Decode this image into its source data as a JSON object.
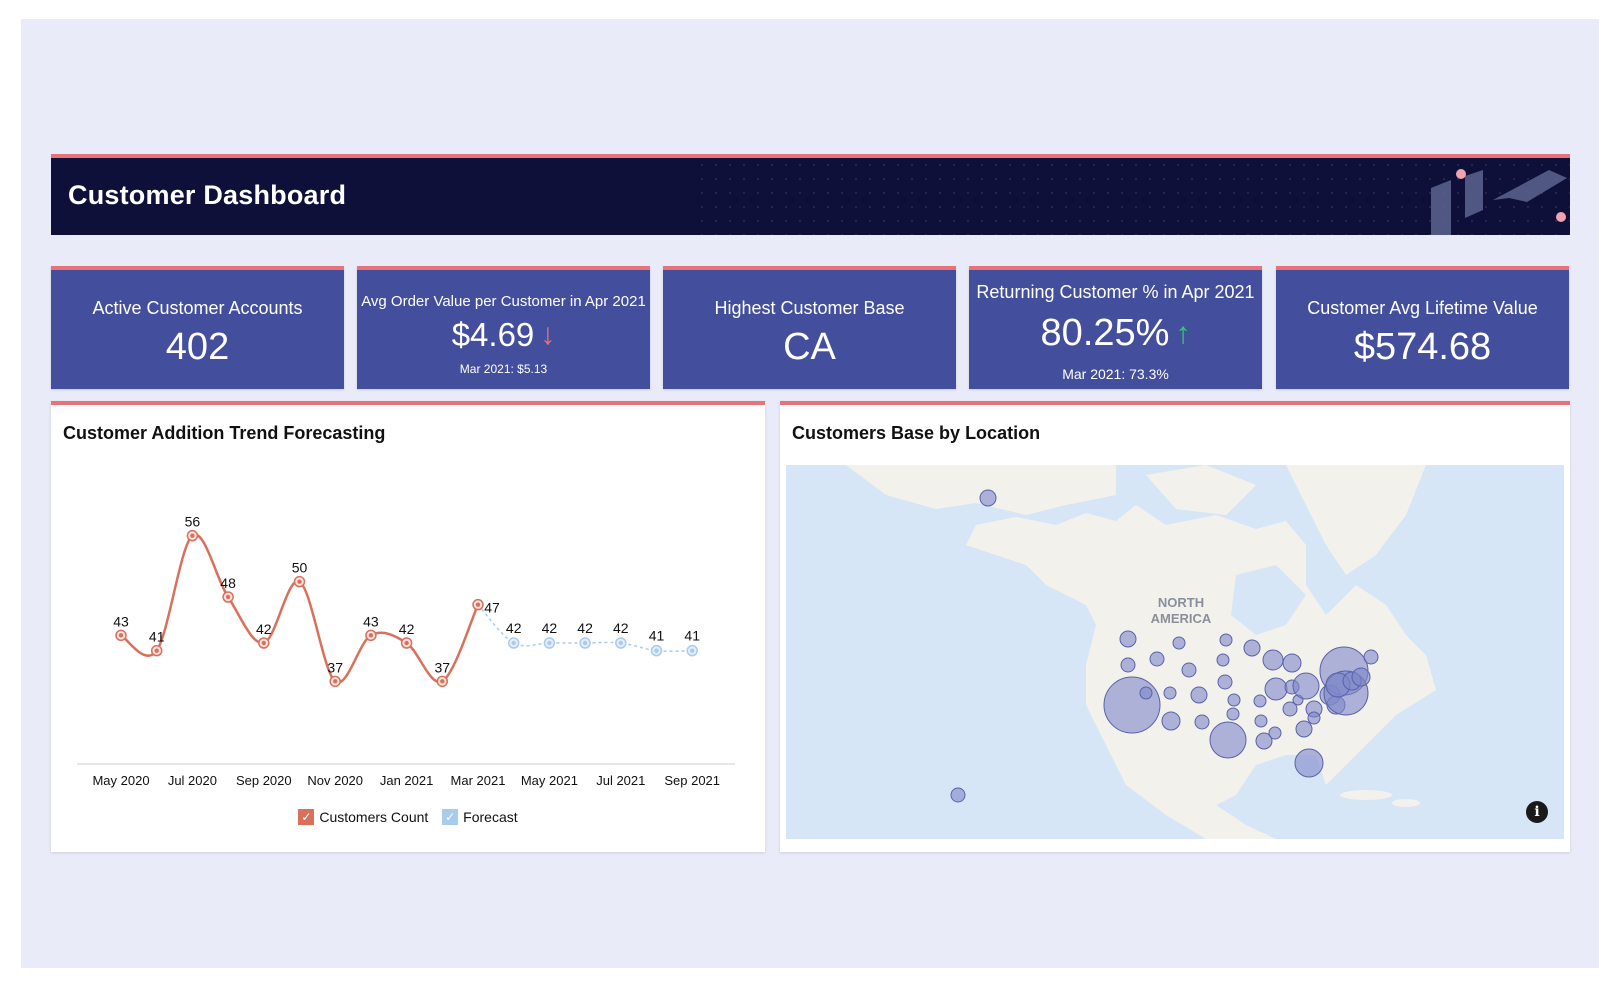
{
  "header": {
    "title": "Customer Dashboard"
  },
  "kpis": [
    {
      "label": "Active Customer Accounts",
      "value": "402"
    },
    {
      "label": "Avg Order Value per Customer in Apr 2021",
      "value": "$4.69",
      "trend": "down",
      "trend_glyph": "↓",
      "trend_color": "#e8727a",
      "sub": "Mar 2021: $5.13"
    },
    {
      "label": "Highest Customer Base",
      "value": "CA"
    },
    {
      "label": "Returning Customer % in Apr 2021",
      "value": "80.25%",
      "trend": "up",
      "trend_glyph": "↑",
      "trend_color": "#2ecc71",
      "sub": "Mar 2021: 73.3%"
    },
    {
      "label": "Customer Avg Lifetime Value",
      "value": "$574.68"
    }
  ],
  "trend_panel": {
    "title": "Customer Addition Trend Forecasting",
    "legend": [
      {
        "label": "Customers Count",
        "color": "#d9705c",
        "icon": "check-icon"
      },
      {
        "label": "Forecast",
        "color": "#a9cbec",
        "icon": "check-icon"
      }
    ]
  },
  "map_panel": {
    "title": "Customers Base by Location",
    "region_label_line1": "NORTH",
    "region_label_line2": "AMERICA",
    "info_glyph": "i",
    "colors": {
      "land": "#f3f1ec",
      "water": "#d6e6f7",
      "bubble": "#7f87c9"
    }
  },
  "chart_data": {
    "type": "line",
    "x": [
      "May 2020",
      "Jun 2020",
      "Jul 2020",
      "Aug 2020",
      "Sep 2020",
      "Oct 2020",
      "Nov 2020",
      "Dec 2020",
      "Jan 2021",
      "Feb 2021",
      "Mar 2021",
      "Apr 2021",
      "May 2021",
      "Jun 2021",
      "Jul 2021",
      "Aug 2021",
      "Sep 2021"
    ],
    "tick_labels": [
      "May 2020",
      "Jul 2020",
      "Sep 2020",
      "Nov 2020",
      "Jan 2021",
      "Mar 2021",
      "May 2021",
      "Jul 2021",
      "Sep 2021"
    ],
    "series": [
      {
        "name": "Customers Count",
        "color": "#d9705c",
        "values": [
          43,
          41,
          56,
          48,
          42,
          50,
          37,
          43,
          42,
          37,
          47,
          null,
          null,
          null,
          null,
          null,
          null
        ]
      },
      {
        "name": "Forecast",
        "color": "#a9cbec",
        "values": [
          null,
          null,
          null,
          null,
          null,
          null,
          null,
          null,
          null,
          null,
          47,
          42,
          42,
          42,
          42,
          41,
          41
        ]
      }
    ],
    "ylim": [
      30,
      60
    ],
    "grid": false,
    "legend_position": "bottom"
  }
}
